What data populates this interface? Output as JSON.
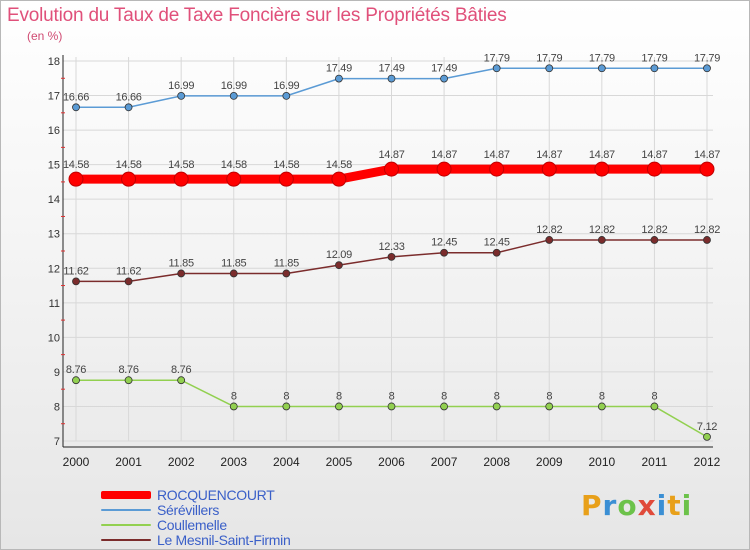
{
  "header": {
    "title": "Evolution du Taux de Taxe Foncière sur les Propriétés Bâties",
    "unit": "(en %)"
  },
  "logo": {
    "text": "Proxiti",
    "colors": [
      "#e8a01a",
      "#3b8fd4",
      "#6cc24a",
      "#e04a3a",
      "#3b8fd4",
      "#e8a01a",
      "#6cc24a"
    ]
  },
  "chart_data": {
    "type": "line",
    "title": "Evolution du Taux de Taxe Foncière sur les Propriétés Bâties",
    "ylabel": "(en %)",
    "xlabel": "",
    "x": [
      "2000",
      "2001",
      "2002",
      "2003",
      "2004",
      "2005",
      "2006",
      "2007",
      "2008",
      "2009",
      "2010",
      "2011",
      "2012"
    ],
    "ylim": [
      7,
      18
    ],
    "yticks": [
      "7",
      "8",
      "9",
      "10",
      "11",
      "12",
      "13",
      "14",
      "15",
      "16",
      "17",
      "18"
    ],
    "grid": true,
    "legend_position": "bottom-left",
    "series": [
      {
        "name": "ROCQUENCOURT",
        "color": "#ff0000",
        "emphasis": true,
        "values": [
          14.58,
          14.58,
          14.58,
          14.58,
          14.58,
          14.58,
          14.87,
          14.87,
          14.87,
          14.87,
          14.87,
          14.87,
          14.87
        ],
        "labels": [
          "14.58",
          "14.58",
          "14.58",
          "14.58",
          "14.58",
          "14.58",
          "14.87",
          "14.87",
          "14.87",
          "14.87",
          "14.87",
          "14.87",
          "14.87"
        ]
      },
      {
        "name": "Sérévillers",
        "color": "#5b9bd5",
        "emphasis": false,
        "values": [
          16.66,
          16.66,
          16.99,
          16.99,
          16.99,
          17.49,
          17.49,
          17.49,
          17.79,
          17.79,
          17.79,
          17.79,
          17.79
        ],
        "labels": [
          "16.66",
          "16.66",
          "16.99",
          "16.99",
          "16.99",
          "17.49",
          "17.49",
          "17.49",
          "17.79",
          "17.79",
          "17.79",
          "17.79",
          "17.79"
        ]
      },
      {
        "name": "Coullemelle",
        "color": "#92d050",
        "emphasis": false,
        "values": [
          8.76,
          8.76,
          8.76,
          8,
          8,
          8,
          8,
          8,
          8,
          8,
          8,
          8,
          7.12
        ],
        "labels": [
          "8.76",
          "8.76",
          "8.76",
          "8",
          "8",
          "8",
          "8",
          "8",
          "8",
          "8",
          "8",
          "8",
          "7.12"
        ]
      },
      {
        "name": "Le Mesnil-Saint-Firmin",
        "color": "#7b2c2c",
        "emphasis": false,
        "values": [
          11.62,
          11.62,
          11.85,
          11.85,
          11.85,
          12.09,
          12.33,
          12.45,
          12.45,
          12.82,
          12.82,
          12.82,
          12.82
        ],
        "labels": [
          "11.62",
          "11.62",
          "11.85",
          "11.85",
          "11.85",
          "12.09",
          "12.33",
          "12.45",
          "12.45",
          "12.82",
          "12.82",
          "12.82",
          "12.82"
        ]
      }
    ]
  }
}
